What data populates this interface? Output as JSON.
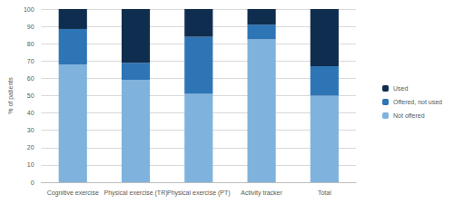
{
  "chart_data": {
    "type": "bar",
    "stacked": true,
    "grid": true,
    "legend": "right",
    "y_label": "% of patients",
    "categories": [
      "Cognitive exercise",
      "Physical exercise (TR)",
      "Physical exercise (PT)",
      "Activity tracker",
      "Total"
    ],
    "series": [
      {
        "name": "Not offered",
        "color": "#7fb2dd",
        "values": [
          68,
          59,
          51,
          82.5,
          50
        ]
      },
      {
        "name": "Offered, not used",
        "color": "#2e75b6",
        "values": [
          20.5,
          10,
          33,
          8.5,
          17
        ]
      },
      {
        "name": "Used",
        "color": "#0f2d4e",
        "values": [
          11.5,
          31,
          16,
          9,
          33
        ]
      }
    ],
    "ylim": [
      0,
      100
    ],
    "yticks": [
      0,
      10,
      20,
      30,
      40,
      50,
      60,
      70,
      80,
      90,
      100
    ]
  }
}
